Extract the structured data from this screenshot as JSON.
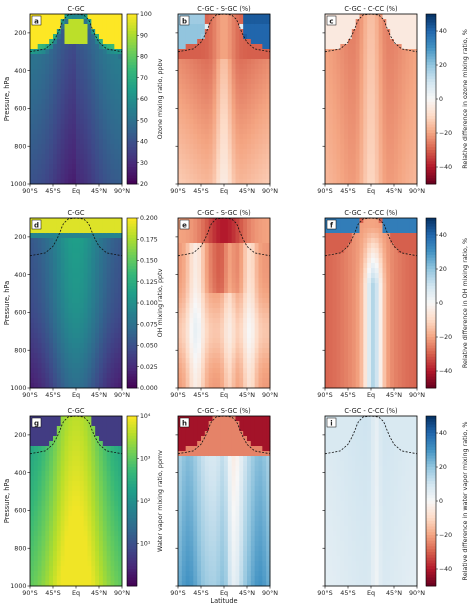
{
  "chart_data": {
    "type": "heatmap",
    "latitude_ticks": [
      "90°S",
      "45°S",
      "Eq",
      "45°N",
      "90°N"
    ],
    "pressure_ticks": [
      200,
      400,
      600,
      800,
      1000
    ],
    "pressure_tick_labels": [
      "200",
      "400",
      "600",
      "800",
      "1000"
    ],
    "xlabel": "Latitude",
    "ylabel": "Pressure, hPa",
    "tropopause": [
      {
        "lat": -90,
        "p": 300
      },
      {
        "lat": -60,
        "p": 285
      },
      {
        "lat": -45,
        "p": 250
      },
      {
        "lat": -35,
        "p": 200
      },
      {
        "lat": -25,
        "p": 130
      },
      {
        "lat": -15,
        "p": 105
      },
      {
        "lat": 0,
        "p": 100
      },
      {
        "lat": 15,
        "p": 105
      },
      {
        "lat": 25,
        "p": 130
      },
      {
        "lat": 35,
        "p": 200
      },
      {
        "lat": 45,
        "p": 250
      },
      {
        "lat": 60,
        "p": 285
      },
      {
        "lat": 90,
        "p": 300
      }
    ],
    "panels": [
      {
        "letter": "a",
        "title": "C-GC",
        "kind": "viridis",
        "field": "ozone"
      },
      {
        "letter": "b",
        "title": "C-GC - S-GC (%)",
        "kind": "rdbu",
        "field": "ozone_b"
      },
      {
        "letter": "c",
        "title": "C-GC - C-CC (%)",
        "kind": "rdbu",
        "field": "ozone_c"
      },
      {
        "letter": "d",
        "title": "C-GC",
        "kind": "viridis",
        "field": "oh"
      },
      {
        "letter": "e",
        "title": "C-GC - S-GC (%)",
        "kind": "rdbu",
        "field": "oh_e"
      },
      {
        "letter": "f",
        "title": "C-GC - C-CC (%)",
        "kind": "rdbu",
        "field": "oh_f"
      },
      {
        "letter": "g",
        "title": "C-GC",
        "kind": "viridis",
        "field": "h2o"
      },
      {
        "letter": "h",
        "title": "C-GC - S-GC (%)",
        "kind": "rdbu",
        "field": "h2o_h"
      },
      {
        "letter": "i",
        "title": "C-GC - C-CC (%)",
        "kind": "rdbu",
        "field": "h2o_i"
      }
    ],
    "colorbars": [
      {
        "label": "Ozone mixing ratio, ppbv",
        "range": [
          20,
          100
        ],
        "ticks": [
          "20",
          "30",
          "40",
          "50",
          "60",
          "70",
          "80",
          "90",
          "100"
        ]
      },
      {
        "label": "OH mixing ratio, pptv",
        "range": [
          0.0,
          0.2
        ],
        "ticks": [
          "0.000",
          "0.025",
          "0.050",
          "0.075",
          "0.100",
          "0.125",
          "0.150",
          "0.175",
          "0.200"
        ]
      },
      {
        "label": "Water vapor mixing ratio, ppmv",
        "range": [
          1,
          10000
        ],
        "scale": "log",
        "ticks": [
          "10¹",
          "10²",
          "10³",
          "10⁴"
        ]
      },
      {
        "label": "Relative difference in ozone mixing ratio, %",
        "range": [
          -50,
          50
        ],
        "ticks": [
          "40",
          "20",
          "0",
          "−20",
          "−40"
        ]
      },
      {
        "label": "Relative difference in OH mixing ratio, %",
        "range": [
          -50,
          50
        ],
        "ticks": [
          "40",
          "20",
          "0",
          "−20",
          "−40"
        ]
      },
      {
        "label": "Relative difference in water vapor mixing ratio, %",
        "range": [
          -50,
          50
        ],
        "ticks": [
          "40",
          "20",
          "0",
          "−20",
          "−40"
        ]
      }
    ]
  }
}
